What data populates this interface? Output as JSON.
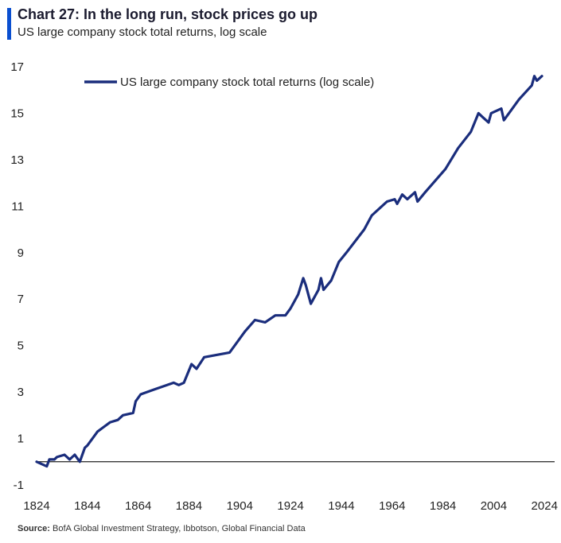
{
  "header": {
    "title": "Chart 27: In the long run, stock prices go up",
    "subtitle": "US large company stock total returns, log scale"
  },
  "footer": {
    "source_label": "Source:",
    "source_text": "BofA Global Investment Strategy, Ibbotson, Global Financial Data"
  },
  "chart_data": {
    "type": "line",
    "title": "Chart 27: In the long run, stock prices go up",
    "subtitle": "US large company stock total returns, log scale",
    "xlabel": "",
    "ylabel": "",
    "xlim": [
      1824,
      2028
    ],
    "ylim": [
      -1,
      17
    ],
    "x_ticks": [
      1824,
      1844,
      1864,
      1884,
      1904,
      1924,
      1944,
      1964,
      1984,
      2004,
      2024
    ],
    "y_ticks": [
      -1,
      1,
      3,
      5,
      7,
      9,
      11,
      13,
      15,
      17
    ],
    "grid": false,
    "baseline": 0,
    "legend_position": "top-left",
    "series": [
      {
        "name": "US large company stock total returns (log scale)",
        "color": "#1a2d7c",
        "x": [
          1824,
          1826,
          1828,
          1829,
          1831,
          1832,
          1835,
          1837,
          1839,
          1841,
          1843,
          1844,
          1848,
          1853,
          1856,
          1858,
          1862,
          1863,
          1865,
          1870,
          1878,
          1880,
          1882,
          1885,
          1887,
          1890,
          1900,
          1902,
          1906,
          1910,
          1914,
          1918,
          1922,
          1924,
          1927,
          1929,
          1930,
          1932,
          1933,
          1935,
          1936,
          1937,
          1940,
          1943,
          1946,
          1953,
          1956,
          1960,
          1962,
          1965,
          1966,
          1968,
          1970,
          1973,
          1974,
          1977,
          1985,
          1990,
          1995,
          1998,
          2000,
          2002,
          2003,
          2007,
          2008,
          2010,
          2014,
          2019,
          2020,
          2021,
          2022,
          2023
        ],
        "y": [
          0.0,
          -0.1,
          -0.2,
          0.1,
          0.1,
          0.2,
          0.3,
          0.1,
          0.3,
          0.0,
          0.6,
          0.7,
          1.3,
          1.7,
          1.8,
          2.0,
          2.1,
          2.6,
          2.9,
          3.1,
          3.4,
          3.3,
          3.4,
          4.2,
          4.0,
          4.5,
          4.7,
          5.0,
          5.6,
          6.1,
          6.0,
          6.3,
          6.3,
          6.6,
          7.2,
          7.9,
          7.6,
          6.8,
          7.0,
          7.4,
          7.9,
          7.4,
          7.8,
          8.6,
          9.0,
          10.0,
          10.6,
          11.0,
          11.2,
          11.3,
          11.1,
          11.5,
          11.3,
          11.6,
          11.2,
          11.6,
          12.6,
          13.5,
          14.2,
          15.0,
          14.8,
          14.6,
          15.0,
          15.2,
          14.7,
          15.0,
          15.6,
          16.2,
          16.6,
          16.4,
          16.5,
          16.6
        ]
      }
    ]
  }
}
